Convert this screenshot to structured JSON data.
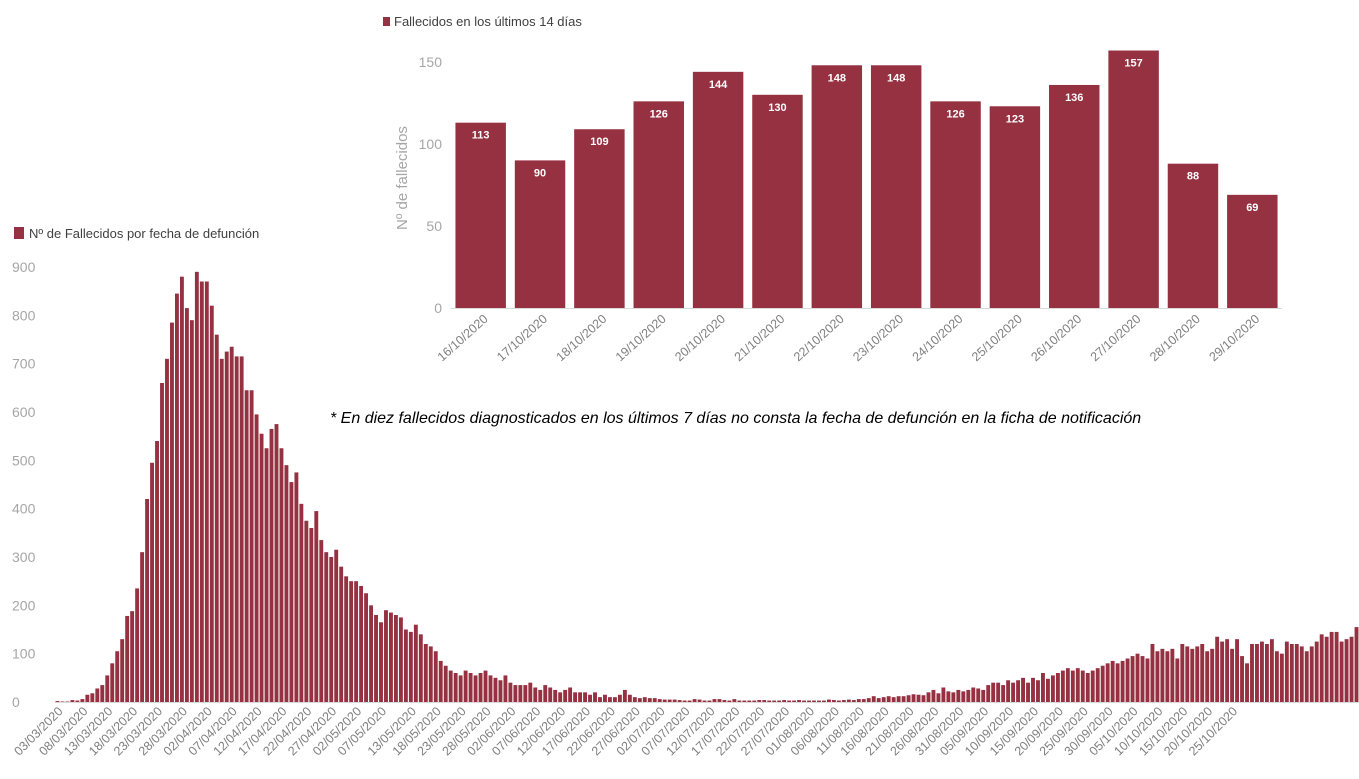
{
  "colors": {
    "bar": "#953141",
    "axis": "#d9d9d9",
    "tick": "#a6a6a6"
  },
  "note": "* En diez fallecidos diagnosticados  en los últimos  7 días no consta la fecha de defunción en la ficha de notificación",
  "chart_data": [
    {
      "type": "bar",
      "title": "",
      "legend": "Fallecidos en los últimos 14 días",
      "xlabel": "",
      "ylabel": "Nº de fallecidos",
      "ylim": [
        0,
        150
      ],
      "yticks": [
        0,
        50,
        100,
        150
      ],
      "grid": false,
      "legend_position": "top-left",
      "categories": [
        "16/10/2020",
        "17/10/2020",
        "18/10/2020",
        "19/10/2020",
        "20/10/2020",
        "21/10/2020",
        "22/10/2020",
        "23/10/2020",
        "24/10/2020",
        "25/10/2020",
        "26/10/2020",
        "27/10/2020",
        "28/10/2020",
        "29/10/2020"
      ],
      "values": [
        113,
        90,
        109,
        126,
        144,
        130,
        148,
        148,
        126,
        123,
        136,
        157,
        88,
        69
      ]
    },
    {
      "type": "bar",
      "title": "",
      "legend": "Nº de Fallecidos por fecha de defunción",
      "xlabel": "",
      "ylabel": "",
      "ylim": [
        0,
        900
      ],
      "yticks": [
        0,
        100,
        200,
        300,
        400,
        500,
        600,
        700,
        800,
        900
      ],
      "grid": false,
      "legend_position": "top-left",
      "start_date": "03/03/2020",
      "tick_labels": [
        "03/03/2020",
        "08/03/2020",
        "13/03/2020",
        "18/03/2020",
        "23/03/2020",
        "28/03/2020",
        "02/04/2020",
        "07/04/2020",
        "12/04/2020",
        "17/04/2020",
        "22/04/2020",
        "27/04/2020",
        "02/05/2020",
        "07/05/2020",
        "13/05/2020",
        "18/05/2020",
        "23/05/2020",
        "28/05/2020",
        "02/06/2020",
        "07/06/2020",
        "12/06/2020",
        "17/06/2020",
        "22/06/2020",
        "27/06/2020",
        "02/07/2020",
        "07/07/2020",
        "12/07/2020",
        "17/07/2020",
        "22/07/2020",
        "27/07/2020",
        "01/08/2020",
        "06/08/2020",
        "11/08/2020",
        "16/08/2020",
        "21/08/2020",
        "26/08/2020",
        "31/08/2020",
        "05/09/2020",
        "10/09/2020",
        "15/09/2020",
        "20/09/2020",
        "25/09/2020",
        "30/09/2020",
        "05/10/2020",
        "10/10/2020",
        "15/10/2020",
        "20/10/2020",
        "25/10/2020"
      ],
      "values": [
        2,
        1,
        1,
        4,
        3,
        6,
        15,
        18,
        28,
        35,
        55,
        80,
        105,
        130,
        178,
        188,
        235,
        310,
        420,
        495,
        540,
        660,
        710,
        785,
        845,
        880,
        815,
        790,
        890,
        870,
        870,
        820,
        760,
        710,
        725,
        735,
        715,
        715,
        645,
        645,
        595,
        555,
        525,
        565,
        575,
        525,
        490,
        455,
        475,
        410,
        375,
        360,
        395,
        335,
        310,
        300,
        315,
        280,
        260,
        250,
        250,
        240,
        225,
        200,
        180,
        165,
        190,
        185,
        180,
        175,
        150,
        145,
        160,
        140,
        120,
        115,
        105,
        85,
        75,
        65,
        60,
        55,
        65,
        60,
        55,
        60,
        65,
        55,
        50,
        45,
        55,
        40,
        35,
        35,
        35,
        40,
        30,
        25,
        35,
        30,
        25,
        20,
        25,
        30,
        20,
        20,
        20,
        15,
        20,
        10,
        15,
        10,
        10,
        15,
        25,
        15,
        10,
        8,
        10,
        8,
        8,
        6,
        5,
        5,
        5,
        4,
        3,
        3,
        6,
        5,
        3,
        3,
        6,
        6,
        4,
        3,
        6,
        3,
        3,
        3,
        3,
        4,
        4,
        3,
        3,
        3,
        4,
        3,
        3,
        4,
        3,
        3,
        3,
        3,
        3,
        5,
        4,
        3,
        4,
        5,
        4,
        6,
        6,
        8,
        12,
        8,
        10,
        12,
        10,
        12,
        12,
        14,
        16,
        15,
        14,
        20,
        25,
        18,
        30,
        22,
        20,
        25,
        22,
        25,
        30,
        28,
        25,
        35,
        40,
        40,
        35,
        45,
        40,
        45,
        50,
        40,
        50,
        45,
        60,
        48,
        55,
        60,
        65,
        70,
        65,
        70,
        65,
        60,
        65,
        70,
        75,
        80,
        85,
        80,
        85,
        90,
        95,
        100,
        95,
        90,
        120,
        105,
        110,
        105,
        110,
        90,
        120,
        115,
        110,
        115,
        120,
        105,
        110,
        135,
        125,
        130,
        110,
        130,
        95,
        80,
        120,
        120,
        125,
        120,
        130,
        105,
        100,
        125,
        120,
        120,
        115,
        105,
        115,
        125,
        140,
        135,
        145,
        145,
        125,
        130,
        135,
        155
      ]
    }
  ]
}
